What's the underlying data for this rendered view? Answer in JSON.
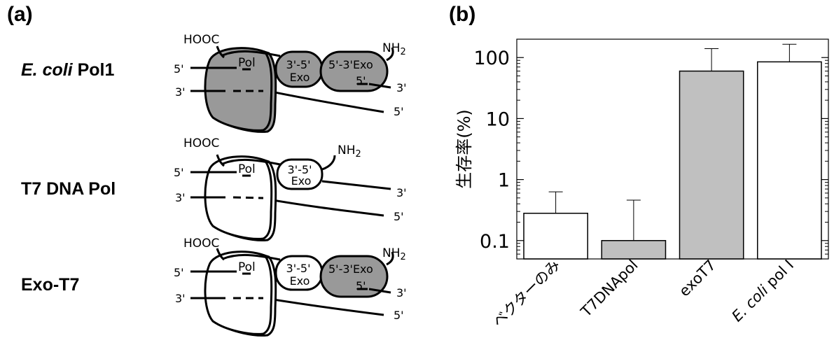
{
  "panel_a": {
    "label": "(a)",
    "rows": [
      {
        "name_italic": "E. coli",
        "name_rest": " Pol1",
        "terminal_c": "HOOC",
        "terminal_n": "NH",
        "pol": "Pol",
        "exo35_line1": "3'-5'",
        "exo35_line2": "Exo",
        "exo53": "5'-3'",
        "exo53b": "Exo",
        "left_top_end": "5'",
        "left_bottom_end": "3'",
        "right_top_end": "3'",
        "right_bottom_end": "5'",
        "inner_end": "5'"
      },
      {
        "name": "T7 DNA Pol",
        "terminal_c": "HOOC",
        "terminal_n": "NH",
        "pol": "Pol",
        "exo35_line1": "3'-5'",
        "exo35_line2": "Exo",
        "left_top_end": "5'",
        "left_bottom_end": "3'",
        "right_top_end": "3'",
        "right_bottom_end": "5'"
      },
      {
        "name": "Exo-T7",
        "terminal_c": "HOOC",
        "terminal_n": "NH",
        "pol": "Pol",
        "exo35_line1": "3'-5'",
        "exo35_line2": "Exo",
        "exo53": "5'-3'",
        "exo53b": "Exo",
        "left_top_end": "5'",
        "left_bottom_end": "3'",
        "right_top_end": "3'",
        "right_bottom_end": "5'",
        "inner_end": "5'"
      }
    ],
    "subscript_2": "2",
    "colors": {
      "domain_fill": "#999999",
      "open_fill": "#ffffff",
      "outline": "#000000"
    }
  },
  "panel_b": {
    "label": "(b)",
    "chart_data": {
      "type": "bar",
      "ylabel": "生存率(%)",
      "yscale": "log",
      "ylim": [
        0.05,
        200
      ],
      "yticks": [
        {
          "value": 0.1,
          "label": "0.1"
        },
        {
          "value": 1,
          "label": "1"
        },
        {
          "value": 10,
          "label": "10"
        },
        {
          "value": 100,
          "label": "100"
        }
      ],
      "categories": [
        {
          "label": "ベクターのみ",
          "italic": ""
        },
        {
          "label": "T7DNApol",
          "italic": ""
        },
        {
          "label": "exoT7",
          "italic": ""
        },
        {
          "label": " pol I",
          "italic": "E. coli"
        }
      ],
      "values": [
        0.28,
        0.1,
        60,
        85
      ],
      "error_upper": [
        0.63,
        0.46,
        140,
        165
      ],
      "bar_colors": [
        "#ffffff",
        "#c0c0c0",
        "#c0c0c0",
        "#ffffff"
      ]
    }
  }
}
